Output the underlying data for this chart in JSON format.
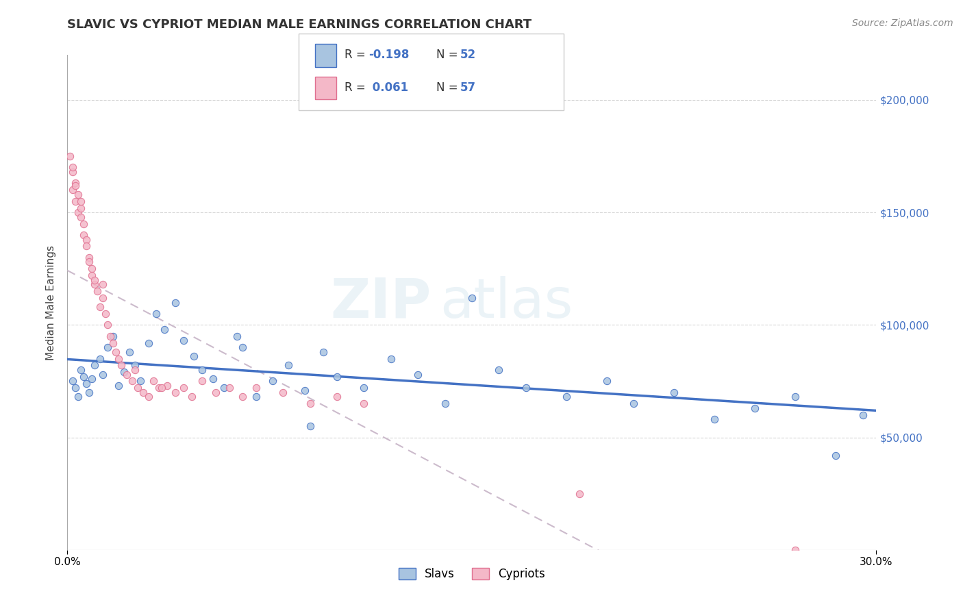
{
  "title": "SLAVIC VS CYPRIOT MEDIAN MALE EARNINGS CORRELATION CHART",
  "source": "Source: ZipAtlas.com",
  "ylabel": "Median Male Earnings",
  "xlim": [
    0.0,
    0.3
  ],
  "ylim": [
    0,
    220000
  ],
  "color_slavs": "#a8c4e0",
  "color_slavs_edge": "#4472c4",
  "color_cypriot": "#f4b8c8",
  "color_cypriot_edge": "#e07090",
  "color_slavs_line": "#4472c4",
  "color_cypriot_line": "#e07090",
  "background_color": "#ffffff",
  "watermark_zip": "ZIP",
  "watermark_atlas": "atlas",
  "slavs_x": [
    0.002,
    0.003,
    0.004,
    0.005,
    0.006,
    0.007,
    0.008,
    0.009,
    0.01,
    0.012,
    0.013,
    0.015,
    0.017,
    0.019,
    0.021,
    0.023,
    0.025,
    0.027,
    0.03,
    0.033,
    0.036,
    0.04,
    0.043,
    0.047,
    0.05,
    0.054,
    0.058,
    0.063,
    0.07,
    0.076,
    0.082,
    0.088,
    0.095,
    0.1,
    0.11,
    0.12,
    0.13,
    0.14,
    0.15,
    0.16,
    0.17,
    0.185,
    0.2,
    0.21,
    0.225,
    0.24,
    0.255,
    0.27,
    0.285,
    0.295,
    0.065,
    0.09
  ],
  "slavs_y": [
    75000,
    72000,
    68000,
    80000,
    77000,
    74000,
    70000,
    76000,
    82000,
    85000,
    78000,
    90000,
    95000,
    73000,
    79000,
    88000,
    82000,
    75000,
    92000,
    105000,
    98000,
    110000,
    93000,
    86000,
    80000,
    76000,
    72000,
    95000,
    68000,
    75000,
    82000,
    71000,
    88000,
    77000,
    72000,
    85000,
    78000,
    65000,
    112000,
    80000,
    72000,
    68000,
    75000,
    65000,
    70000,
    58000,
    63000,
    68000,
    42000,
    60000,
    90000,
    55000
  ],
  "cypriot_x": [
    0.001,
    0.002,
    0.002,
    0.003,
    0.003,
    0.004,
    0.004,
    0.005,
    0.005,
    0.006,
    0.006,
    0.007,
    0.007,
    0.008,
    0.008,
    0.009,
    0.009,
    0.01,
    0.01,
    0.011,
    0.012,
    0.013,
    0.014,
    0.015,
    0.016,
    0.017,
    0.018,
    0.019,
    0.02,
    0.022,
    0.024,
    0.026,
    0.028,
    0.03,
    0.032,
    0.034,
    0.037,
    0.04,
    0.043,
    0.046,
    0.05,
    0.055,
    0.06,
    0.065,
    0.07,
    0.08,
    0.09,
    0.1,
    0.11,
    0.013,
    0.025,
    0.035,
    0.005,
    0.003,
    0.002,
    0.27,
    0.19
  ],
  "cypriot_y": [
    175000,
    160000,
    168000,
    155000,
    163000,
    150000,
    158000,
    148000,
    152000,
    145000,
    140000,
    138000,
    135000,
    130000,
    128000,
    125000,
    122000,
    118000,
    120000,
    115000,
    108000,
    112000,
    105000,
    100000,
    95000,
    92000,
    88000,
    85000,
    82000,
    78000,
    75000,
    72000,
    70000,
    68000,
    75000,
    72000,
    73000,
    70000,
    72000,
    68000,
    75000,
    70000,
    72000,
    68000,
    72000,
    70000,
    65000,
    68000,
    65000,
    118000,
    80000,
    72000,
    155000,
    162000,
    170000,
    0,
    25000
  ]
}
